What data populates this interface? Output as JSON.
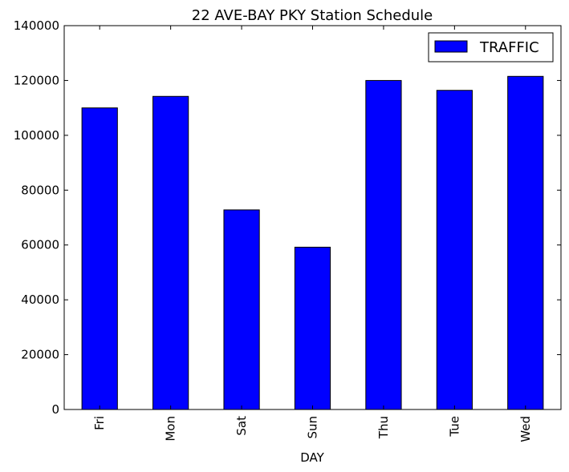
{
  "chart_data": {
    "type": "bar",
    "title": "22 AVE-BAY PKY Station Schedule",
    "xlabel": "DAY",
    "ylabel": "",
    "categories": [
      "Fri",
      "Mon",
      "Sat",
      "Sun",
      "Thu",
      "Tue",
      "Wed"
    ],
    "series": [
      {
        "name": "TRAFFIC",
        "color": "#0000ff",
        "values": [
          110000,
          114200,
          72800,
          59200,
          120000,
          116400,
          121500
        ]
      }
    ],
    "ylim": [
      0,
      140000
    ],
    "yticks": [
      0,
      20000,
      40000,
      60000,
      80000,
      100000,
      120000,
      140000
    ],
    "legend_position": "top-right",
    "grid": false
  }
}
